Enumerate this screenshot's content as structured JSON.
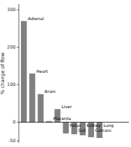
{
  "chart_data": {
    "type": "bar",
    "categories": [
      "Adrenal",
      "Heart",
      "Brain",
      "Placenta",
      "Liver",
      "Fetus",
      "Gut",
      "Kidney",
      "Carcass",
      "Lung"
    ],
    "values": [
      270,
      130,
      75,
      3,
      35,
      -30,
      -32,
      -35,
      -40,
      -42
    ],
    "color": "#808080",
    "ylabel": "% change of flow",
    "ylim": [
      -55,
      315
    ],
    "yticks": [
      -50,
      0,
      100,
      200,
      300
    ],
    "tick_labels": "y"
  }
}
